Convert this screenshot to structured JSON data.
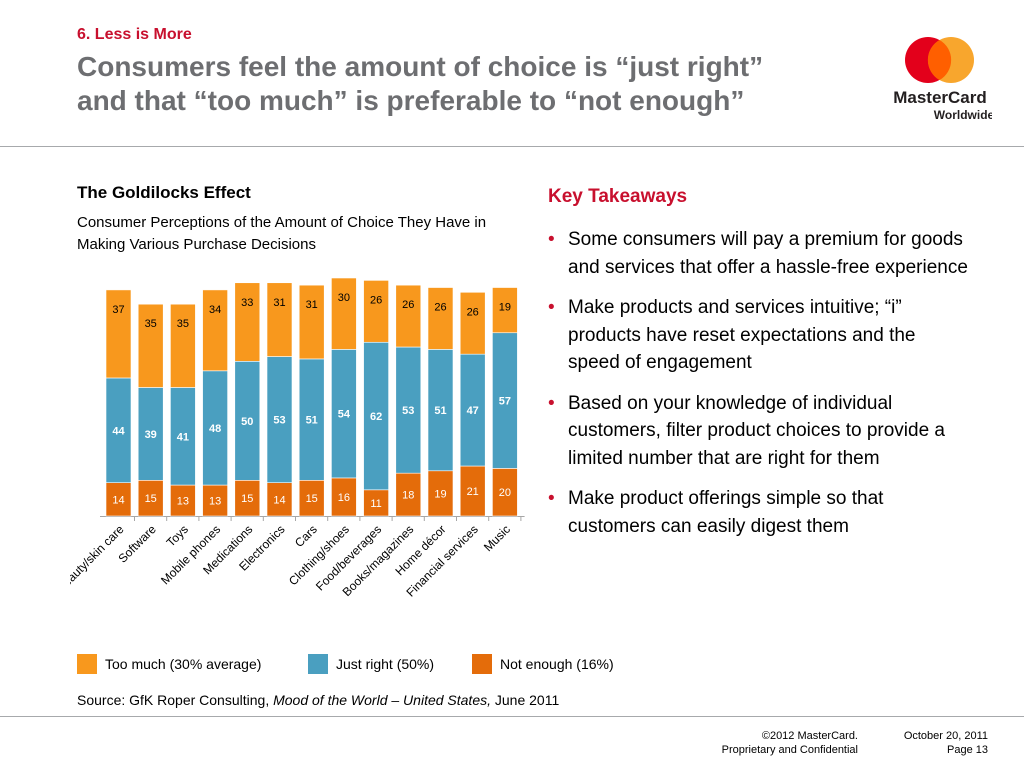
{
  "header": {
    "section": "6. Less is More",
    "headline_line1": "Consumers feel the amount of choice is “just right”",
    "headline_line2": "and that “too much” is preferable to “not enough”"
  },
  "logo": {
    "line1": "MasterCard",
    "line2": "Worldwide",
    "brand_colors": [
      "#e3001b",
      "#f79e1b"
    ]
  },
  "chart_header": {
    "title": "The Goldilocks Effect",
    "subtitle": "Consumer Perceptions of the Amount of Choice They Have in Making Various Purchase Decisions"
  },
  "chart_data": {
    "type": "bar",
    "stacked": true,
    "categories": [
      "Beauty/skin care",
      "Software",
      "Toys",
      "Mobile phones",
      "Medications",
      "Electronics",
      "Cars",
      "Clothing/shoes",
      "Food/beverages",
      "Books/magazines",
      "Home décor",
      "Financial services",
      "Music"
    ],
    "series": [
      {
        "name": "Not enough (16%)",
        "color": "#e46c0a",
        "values": [
          14,
          15,
          13,
          13,
          15,
          14,
          15,
          16,
          11,
          18,
          19,
          21,
          20
        ]
      },
      {
        "name": "Just right (50%)",
        "color": "#4a9fc0",
        "values": [
          44,
          39,
          41,
          48,
          50,
          53,
          51,
          54,
          62,
          53,
          51,
          47,
          57
        ]
      },
      {
        "name": "Too much (30% average)",
        "color": "#f8981d",
        "values": [
          37,
          35,
          35,
          34,
          33,
          31,
          31,
          30,
          26,
          26,
          26,
          26,
          19
        ]
      }
    ],
    "ylim": [
      0,
      100
    ],
    "grid": false,
    "legend_position": "bottom"
  },
  "legend_items": [
    {
      "label": "Too much (30% average)",
      "color": "#f8981d"
    },
    {
      "label": "Just right (50%)",
      "color": "#4a9fc0"
    },
    {
      "label": "Not enough (16%)",
      "color": "#e46c0a"
    }
  ],
  "takeaways": {
    "title": "Key Takeaways",
    "items": [
      "Some consumers will pay a premium for goods and services that offer a hassle-free experience",
      "Make products and services intuitive; “i” products have reset expectations and the speed of engagement",
      "Based on your knowledge of individual customers, filter product choices to provide a limited number that are right for them",
      "Make product offerings simple so that customers can easily digest them"
    ]
  },
  "source": {
    "prefix": "Source: GfK Roper Consulting, ",
    "title": "Mood of the World – United States,",
    "suffix": " June 2011"
  },
  "footer": {
    "copyright": "©2012 MasterCard.",
    "confidential": "Proprietary and Confidential",
    "date": "October 20, 2011",
    "page": "Page 13"
  }
}
